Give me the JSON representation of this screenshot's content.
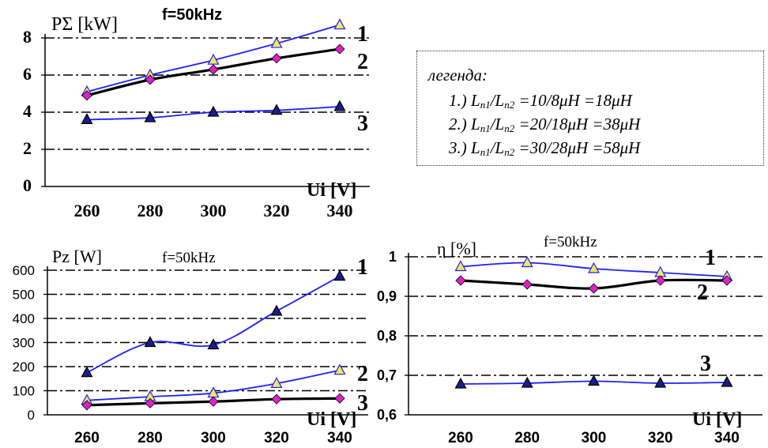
{
  "chart_data": [
    {
      "type": "line",
      "title": "f=50kHz",
      "ylabel": "PΣ [kW]",
      "xlabel": "Ui [V]",
      "x": [
        260,
        280,
        300,
        320,
        340
      ],
      "ylim": [
        0,
        8
      ],
      "yticks": [
        "0",
        "2",
        "4",
        "6",
        "8"
      ],
      "xticks": [
        "260",
        "280",
        "300",
        "320",
        "340"
      ],
      "grid": "horizontal dash-dot",
      "series": [
        {
          "name": "1",
          "values": [
            5.1,
            6.0,
            6.8,
            7.7,
            8.7
          ],
          "color": "#1f1fff",
          "marker": "triangle-yellow"
        },
        {
          "name": "2",
          "values": [
            4.9,
            5.75,
            6.3,
            6.9,
            7.4
          ],
          "color": "#000000",
          "marker": "diamond-magenta"
        },
        {
          "name": "3",
          "values": [
            3.6,
            3.7,
            4.0,
            4.1,
            4.3
          ],
          "color": "#1f1fff",
          "marker": "triangle-navy"
        }
      ]
    },
    {
      "type": "line",
      "title": "f=50kHz",
      "ylabel": "Pz [W]",
      "xlabel": "Ui [V]",
      "x": [
        260,
        280,
        300,
        320,
        340
      ],
      "ylim": [
        0,
        600
      ],
      "yticks": [
        "0",
        "100",
        "200",
        "300",
        "400",
        "500",
        "600"
      ],
      "xticks": [
        "260",
        "280",
        "300",
        "320",
        "340"
      ],
      "grid": "horizontal dash-dot",
      "series": [
        {
          "name": "1",
          "values": [
            60,
            75,
            90,
            130,
            185
          ],
          "color": "#1f1fff",
          "marker": "triangle-yellow"
        },
        {
          "name": "2",
          "values": [
            40,
            48,
            55,
            65,
            68
          ],
          "color": "#000000",
          "marker": "diamond-magenta"
        },
        {
          "name": "3",
          "values": [
            175,
            300,
            290,
            430,
            575
          ],
          "color": "#1f1fff",
          "marker": "triangle-navy"
        }
      ]
    },
    {
      "type": "line",
      "title": "f=50kHz",
      "ylabel": "η [%]",
      "xlabel": "Ui [V]",
      "x": [
        260,
        280,
        300,
        320,
        340
      ],
      "ylim": [
        0.6,
        1.0
      ],
      "yticks": [
        "0,6",
        "0,7",
        "0,8",
        "0,9",
        "1"
      ],
      "xticks": [
        "260",
        "280",
        "300",
        "320",
        "340"
      ],
      "grid": "horizontal dash-dot",
      "series": [
        {
          "name": "1",
          "values": [
            0.975,
            0.985,
            0.97,
            0.96,
            0.95
          ],
          "color": "#1f1fff",
          "marker": "triangle-yellow"
        },
        {
          "name": "2",
          "values": [
            0.94,
            0.93,
            0.92,
            0.94,
            0.94
          ],
          "color": "#000000",
          "marker": "diamond-magenta"
        },
        {
          "name": "3",
          "values": [
            0.678,
            0.68,
            0.685,
            0.68,
            0.682
          ],
          "color": "#1f1fff",
          "marker": "triangle-navy"
        }
      ]
    }
  ],
  "legend": {
    "title": "легенда:",
    "items": [
      {
        "prefix": "1.) L",
        "s1": "n1",
        "mid": "/L",
        "s2": "n2",
        "rest": " =10/8μH =18μH"
      },
      {
        "prefix": "2.) L",
        "s1": "n1",
        "mid": "/L",
        "s2": "n2",
        "rest": " =20/18μH =38μH"
      },
      {
        "prefix": "3.) L",
        "s1": "n1",
        "mid": "/L",
        "s2": "n2",
        "rest": " =30/28μH =58μH"
      }
    ]
  },
  "colors": {
    "blue_line": "#1f1fff",
    "black_line": "#000000",
    "triangle_fill_yellow": "#f2e85a",
    "triangle_fill_navy": "#1c1c8c",
    "diamond_fill_magenta": "#e020c8"
  }
}
